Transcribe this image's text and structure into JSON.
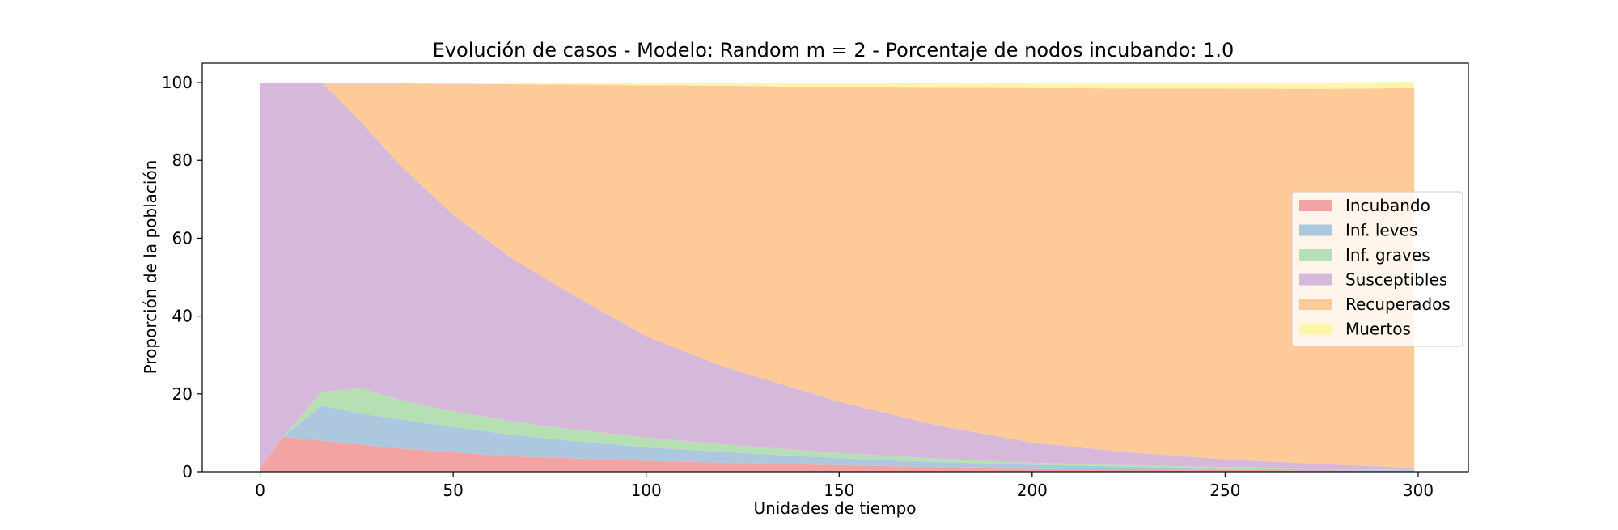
{
  "chart_data": {
    "type": "area",
    "stacked": true,
    "title": "Evolución de casos - Modelo: Random m = 2 - Porcentaje de nodos incubando: 1.0",
    "xlabel": "Unidades de tiempo",
    "ylabel": "Proporción de la población",
    "xlim": [
      -15,
      313
    ],
    "ylim": [
      0,
      105
    ],
    "x_ticks": [
      0,
      50,
      100,
      150,
      200,
      250,
      300
    ],
    "y_ticks": [
      0,
      20,
      40,
      60,
      80,
      100
    ],
    "legend_position": "center-right",
    "grid": false,
    "x": [
      0,
      6,
      16,
      26,
      36,
      50,
      65,
      80,
      100,
      120,
      150,
      175,
      200,
      225,
      250,
      275,
      299
    ],
    "series": [
      {
        "name": "Incubando",
        "color": "#f4a3a3",
        "values": [
          1,
          9,
          8,
          7,
          6,
          5,
          4,
          3.5,
          2.8,
          2.3,
          1.7,
          1.2,
          0.9,
          0.7,
          0.5,
          0.3,
          0.2
        ]
      },
      {
        "name": "Inf. leves",
        "color": "#adc8de",
        "values": [
          0,
          0,
          9,
          8,
          7.5,
          6.5,
          5.5,
          4.5,
          3.5,
          2.8,
          1.8,
          1.3,
          0.9,
          0.6,
          0.4,
          0.3,
          0.2
        ]
      },
      {
        "name": "Inf. graves",
        "color": "#b6e0b3",
        "values": [
          0,
          0,
          3.5,
          6.5,
          5,
          4,
          3.5,
          3,
          2.5,
          1.9,
          1.3,
          0.9,
          0.5,
          0.4,
          0.3,
          0.2,
          0.1
        ]
      },
      {
        "name": "Susceptibles",
        "color": "#d6b8da",
        "values": [
          99,
          91,
          79.5,
          68.5,
          60.5,
          50.5,
          42,
          35,
          26,
          20,
          13.2,
          8.6,
          5.2,
          3.3,
          2,
          1.2,
          0.5
        ]
      },
      {
        "name": "Recuperados",
        "color": "#fecb98",
        "values": [
          0,
          0,
          0,
          9.9,
          20.8,
          33.7,
          44.6,
          53.5,
          64.5,
          72.2,
          80.8,
          86.7,
          91.1,
          93.5,
          95.3,
          96.4,
          97.6
        ]
      },
      {
        "name": "Muertos",
        "color": "#fdf5a8",
        "values": [
          0,
          0,
          0,
          0.1,
          0.2,
          0.3,
          0.4,
          0.5,
          0.7,
          0.8,
          1.2,
          1.3,
          1.4,
          1.5,
          1.5,
          1.6,
          1.6
        ]
      }
    ]
  }
}
